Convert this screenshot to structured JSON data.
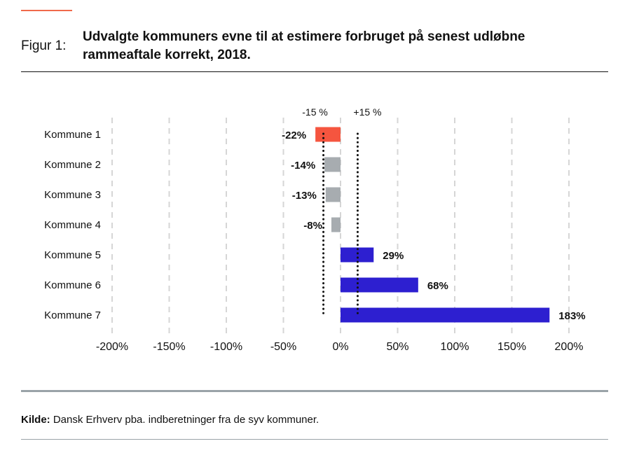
{
  "header": {
    "figure_label": "Figur 1:",
    "title": "Udvalgte kommuners evne til at estimere forbruget på senest udløbne rammeaftale korrekt, 2018."
  },
  "chart_data": {
    "type": "bar",
    "orientation": "horizontal",
    "categories": [
      "Kommune 1",
      "Kommune 2",
      "Kommune 3",
      "Kommune 4",
      "Kommune 5",
      "Kommune 6",
      "Kommune 7"
    ],
    "values": [
      -22,
      -14,
      -13,
      -8,
      29,
      68,
      183
    ],
    "value_labels": [
      "-22%",
      "-14%",
      "-13%",
      "-8%",
      "29%",
      "68%",
      "183%"
    ],
    "bar_colors": [
      "#f5553f",
      "#a7acb0",
      "#a7acb0",
      "#a7acb0",
      "#2d1fd0",
      "#2d1fd0",
      "#2d1fd0"
    ],
    "xlim": [
      -200,
      200
    ],
    "xticks": [
      -200,
      -150,
      -100,
      -50,
      0,
      50,
      100,
      150,
      200
    ],
    "xtick_labels": [
      "-200%",
      "-150%",
      "-100%",
      "-50%",
      "0%",
      "50%",
      "100%",
      "150%",
      "200%"
    ],
    "reference_lines": [
      {
        "value": -15,
        "label": "-15 %"
      },
      {
        "value": 15,
        "label": "+15 %"
      }
    ],
    "grid": true
  },
  "source": {
    "label": "Kilde:",
    "text": " Dansk Erhverv pba. indberetninger fra de syv kommuner."
  }
}
